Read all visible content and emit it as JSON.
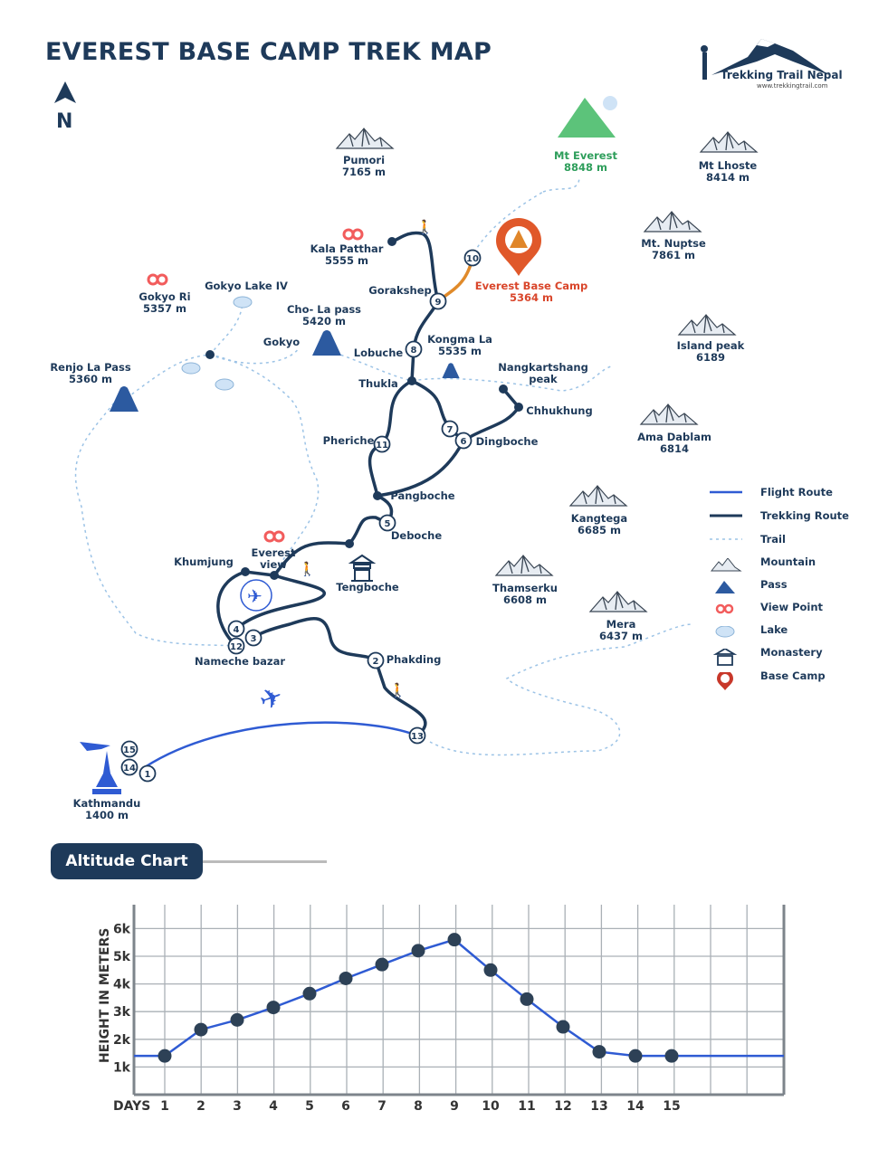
{
  "title": "EVEREST BASE CAMP TREK MAP",
  "north": "N",
  "logo": {
    "name": "Trekking Trail Nepal",
    "url": "www.trekkingtrail.com"
  },
  "colors": {
    "trek": "#1e3a5a",
    "flight": "#2f5bd3",
    "trail": "#9cc3e6",
    "pass": "#2c5aa0",
    "viewpoint": "#f25c5c",
    "basecamp": "#d9462b",
    "everest": "#2e9e5b"
  },
  "places": [
    {
      "name": "Pumori",
      "alt": "7165 m",
      "type": "mountain"
    },
    {
      "name": "Mt Everest",
      "alt": "8848 m",
      "type": "everest"
    },
    {
      "name": "Mt Lhoste",
      "alt": "8414 m",
      "type": "mountain"
    },
    {
      "name": "Mt. Nuptse",
      "alt": "7861 m",
      "type": "mountain"
    },
    {
      "name": "Island peak",
      "alt": "6189",
      "type": "mountain"
    },
    {
      "name": "Ama Dablam",
      "alt": "6814",
      "type": "mountain"
    },
    {
      "name": "Kangtega",
      "alt": "6685 m",
      "type": "mountain"
    },
    {
      "name": "Thamserku",
      "alt": "6608 m",
      "type": "mountain"
    },
    {
      "name": "Mera",
      "alt": "6437 m",
      "type": "mountain"
    },
    {
      "name": "Kala Patthar",
      "alt": "5555 m",
      "type": "viewpoint"
    },
    {
      "name": "Everest Base Camp",
      "alt": "5364 m",
      "type": "basecamp"
    },
    {
      "name": "Gokyo Ri",
      "alt": "5357 m",
      "type": "viewpoint"
    },
    {
      "name": "Gokyo Lake IV",
      "alt": "",
      "type": "lake"
    },
    {
      "name": "Cho- La pass",
      "alt": "5420 m",
      "type": "pass"
    },
    {
      "name": "Gokyo",
      "alt": "",
      "type": "village"
    },
    {
      "name": "Renjo La Pass",
      "alt": "5360 m",
      "type": "pass"
    },
    {
      "name": "Gorakshep",
      "alt": "",
      "type": "village"
    },
    {
      "name": "Kongma La",
      "alt": "5535 m",
      "type": "pass"
    },
    {
      "name": "Lobuche",
      "alt": "",
      "type": "village"
    },
    {
      "name": "Nangkartshang",
      "alt": "peak",
      "type": "village"
    },
    {
      "name": "Thukla",
      "alt": "",
      "type": "village"
    },
    {
      "name": "Chhukhung",
      "alt": "",
      "type": "village"
    },
    {
      "name": "Pheriche",
      "alt": "",
      "type": "village"
    },
    {
      "name": "Dingboche",
      "alt": "",
      "type": "village"
    },
    {
      "name": "Pangboche",
      "alt": "",
      "type": "village"
    },
    {
      "name": "Deboche",
      "alt": "",
      "type": "village"
    },
    {
      "name": "Everest",
      "alt": "view",
      "type": "viewpoint"
    },
    {
      "name": "Khumjung",
      "alt": "",
      "type": "village"
    },
    {
      "name": "Tengboche",
      "alt": "",
      "type": "monastery"
    },
    {
      "name": "Nameche bazar",
      "alt": "",
      "type": "village"
    },
    {
      "name": "Phakding",
      "alt": "",
      "type": "village"
    },
    {
      "name": "Kathmandu",
      "alt": "1400 m",
      "type": "city"
    }
  ],
  "stops": [
    "10",
    "9",
    "8",
    "7",
    "6",
    "11",
    "5",
    "4",
    "12",
    "3",
    "2",
    "13",
    "15",
    "14",
    "1"
  ],
  "legend": [
    {
      "label": "Flight Route",
      "icon": "flight-line"
    },
    {
      "label": "Trekking Route",
      "icon": "trek-line"
    },
    {
      "label": "Trail",
      "icon": "dotted-line"
    },
    {
      "label": "Mountain",
      "icon": "mountain-icon"
    },
    {
      "label": "Pass",
      "icon": "pass-icon"
    },
    {
      "label": "View Point",
      "icon": "binoculars-icon"
    },
    {
      "label": "Lake",
      "icon": "lake-icon"
    },
    {
      "label": "Monastery",
      "icon": "monastery-icon"
    },
    {
      "label": "Base Camp",
      "icon": "pin-icon"
    }
  ],
  "altitude_title": "Altitude Chart",
  "chart_data": {
    "type": "line",
    "title": "Altitude Chart",
    "xlabel": "DAYS",
    "ylabel": "HEIGHT IN METERS",
    "x": [
      1,
      2,
      3,
      4,
      5,
      6,
      7,
      8,
      9,
      10,
      11,
      12,
      13,
      14,
      15
    ],
    "values": [
      1400,
      2350,
      2700,
      3150,
      3650,
      4200,
      4700,
      5200,
      5600,
      4500,
      3450,
      2450,
      1550,
      1400,
      1400
    ],
    "ytick_labels": [
      "1k",
      "2k",
      "3k",
      "4k",
      "5k",
      "6k"
    ],
    "yticks": [
      1000,
      2000,
      3000,
      4000,
      5000,
      6000
    ],
    "xtick_labels": [
      "1",
      "2",
      "3",
      "4",
      "5",
      "6",
      "7",
      "8",
      "9",
      "10",
      "11",
      "12",
      "13",
      "14",
      "15"
    ],
    "ylim": [
      0,
      7000
    ],
    "grid": true,
    "line_color": "#2f5bd3",
    "marker_color": "#2d4156"
  }
}
